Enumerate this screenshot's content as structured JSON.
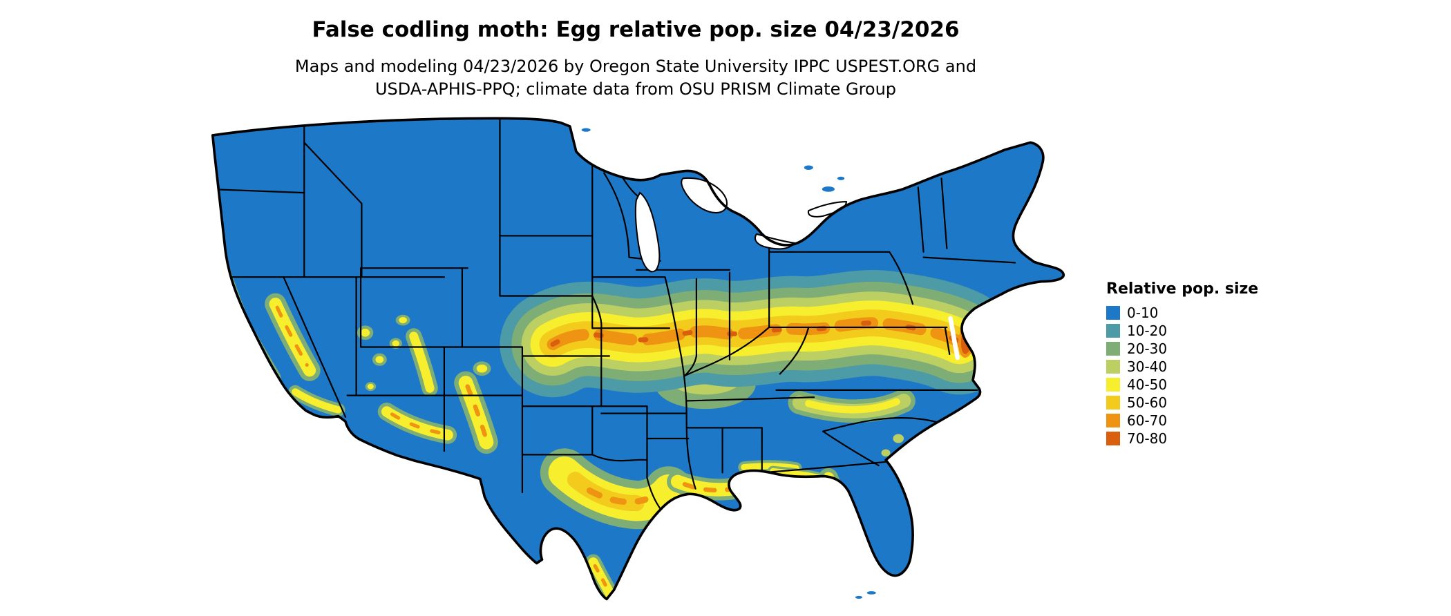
{
  "header": {
    "title": "False codling moth: Egg relative pop. size 04/23/2026",
    "subtitle_line1": "Maps and modeling 04/23/2026 by Oregon State University IPPC USPEST.ORG and",
    "subtitle_line2": "USDA-APHIS-PPQ; climate data from OSU PRISM Climate Group"
  },
  "legend": {
    "title": "Relative pop. size",
    "items": [
      {
        "label": "0-10",
        "color": "#1E78C8"
      },
      {
        "label": "10-20",
        "color": "#4D9BA6"
      },
      {
        "label": "20-30",
        "color": "#7FAD76"
      },
      {
        "label": "30-40",
        "color": "#BCCF62"
      },
      {
        "label": "40-50",
        "color": "#F7EF2E"
      },
      {
        "label": "50-60",
        "color": "#F2CB1D"
      },
      {
        "label": "60-70",
        "color": "#EF9412"
      },
      {
        "label": "70-80",
        "color": "#D95F0E"
      }
    ]
  },
  "map": {
    "region_label": "Continental United States",
    "ocean_color": "#FFFFFF",
    "border_color": "#000000"
  }
}
